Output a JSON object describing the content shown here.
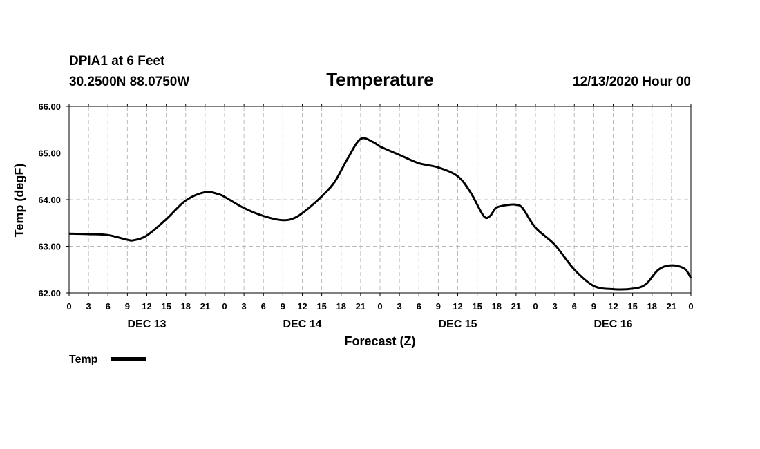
{
  "header": {
    "station": "DPIA1 at 6 Feet",
    "coords": "30.2500N 88.0750W",
    "datetime": "12/13/2020 Hour 00"
  },
  "chart_data": {
    "type": "line",
    "title": "Temperature",
    "xlabel": "Forecast (Z)",
    "ylabel": "Temp (degF)",
    "ylim": [
      62.0,
      66.0
    ],
    "y_ticks": [
      "62.00",
      "63.00",
      "64.00",
      "65.00",
      "66.00"
    ],
    "x_range_hours": [
      0,
      96
    ],
    "x_tick_labels": [
      "0",
      "3",
      "6",
      "9",
      "12",
      "15",
      "18",
      "21",
      "0",
      "3",
      "6",
      "9",
      "12",
      "15",
      "18",
      "21",
      "0",
      "3",
      "6",
      "9",
      "12",
      "15",
      "18",
      "21",
      "0",
      "3",
      "6",
      "9",
      "12",
      "15",
      "18",
      "21",
      "0"
    ],
    "day_labels": [
      {
        "label": "DEC 13",
        "hour": 12
      },
      {
        "label": "DEC 14",
        "hour": 36
      },
      {
        "label": "DEC 15",
        "hour": 60
      },
      {
        "label": "DEC 16",
        "hour": 84
      }
    ],
    "grid": true,
    "legend_position": "bottom-left",
    "series": [
      {
        "name": "Temp",
        "color": "#000000",
        "x": [
          0,
          3,
          6,
          9,
          10,
          12,
          15,
          18,
          21,
          23,
          24,
          27,
          30,
          33,
          35,
          37,
          39,
          41,
          43,
          45,
          47,
          48,
          51,
          54,
          57,
          60,
          62,
          64,
          65,
          66,
          68,
          69,
          70,
          72,
          75,
          78,
          81,
          84,
          87,
          89,
          91,
          93,
          95,
          96
        ],
        "y": [
          63.27,
          63.26,
          63.24,
          63.14,
          63.13,
          63.23,
          63.58,
          63.98,
          64.16,
          64.12,
          64.06,
          63.82,
          63.65,
          63.56,
          63.62,
          63.82,
          64.07,
          64.38,
          64.88,
          65.3,
          65.23,
          65.14,
          64.96,
          64.78,
          64.69,
          64.5,
          64.15,
          63.65,
          63.65,
          63.83,
          63.89,
          63.89,
          63.82,
          63.4,
          63.03,
          62.5,
          62.15,
          62.08,
          62.09,
          62.18,
          62.5,
          62.59,
          62.52,
          62.32
        ]
      }
    ]
  }
}
